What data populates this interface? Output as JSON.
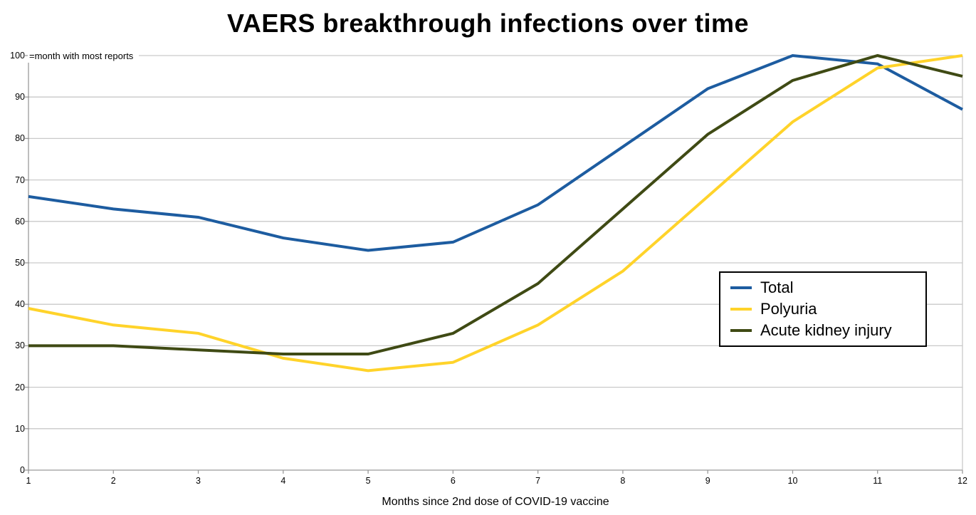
{
  "chart_data": {
    "type": "line",
    "title": "VAERS breakthrough infections over time",
    "annotation": "=month with most reports",
    "xlabel": "Months since 2nd dose of COVID-19 vaccine",
    "ylabel": "",
    "x": [
      1,
      2,
      3,
      4,
      5,
      6,
      7,
      8,
      9,
      10,
      11,
      12
    ],
    "xticks": [
      "1",
      "2",
      "3",
      "4",
      "5",
      "6",
      "7",
      "8",
      "9",
      "10",
      "11",
      "12"
    ],
    "yticks": [
      0,
      10,
      20,
      30,
      40,
      50,
      60,
      70,
      80,
      90,
      100
    ],
    "ylim": [
      0,
      100
    ],
    "grid": true,
    "legend_position": "middle-right",
    "series": [
      {
        "name": "Total",
        "color": "#1D5CA0",
        "values": [
          66,
          63,
          61,
          56,
          53,
          55,
          64,
          78,
          92,
          100,
          98,
          87
        ]
      },
      {
        "name": "Polyuria",
        "color": "#FFD32A",
        "values": [
          39,
          35,
          33,
          27,
          24,
          26,
          35,
          48,
          66,
          84,
          97,
          100
        ]
      },
      {
        "name": "Acute kidney injury",
        "color": "#3F4A14",
        "values": [
          30,
          30,
          29,
          28,
          28,
          33,
          45,
          63,
          81,
          94,
          100,
          95
        ]
      }
    ],
    "colors": {
      "gridline": "#C9C9C9",
      "axis": "#9A9A9A",
      "background": "#FFFFFF",
      "text": "#000000"
    }
  }
}
